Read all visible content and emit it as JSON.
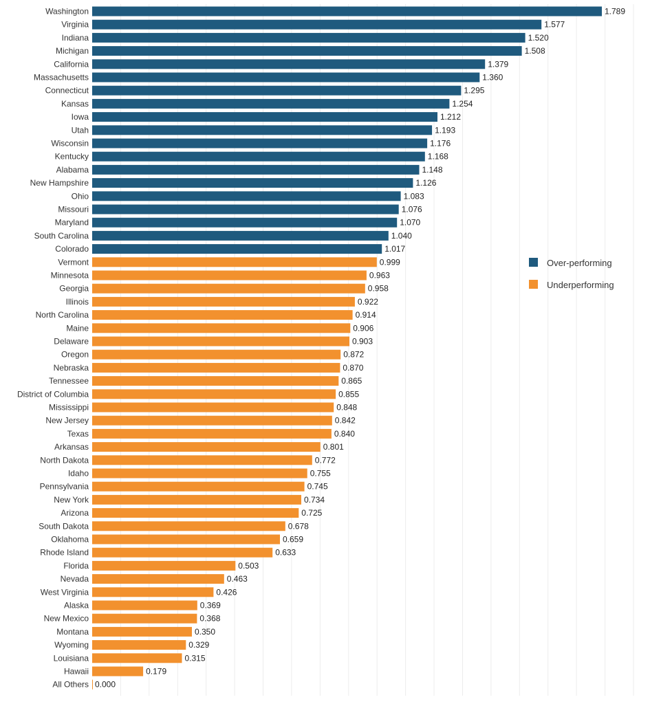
{
  "chart_data": {
    "type": "bar",
    "orientation": "horizontal",
    "title": "",
    "xlabel": "",
    "ylabel": "",
    "xlim": [
      0,
      1.9
    ],
    "grid": true,
    "legend_position": "right",
    "colors": {
      "over": "#1f5a7e",
      "under": "#f2912e"
    },
    "legend": [
      {
        "key": "over",
        "label": "Over-performing"
      },
      {
        "key": "under",
        "label": "Underperforming"
      }
    ],
    "bars": [
      {
        "category": "Washington",
        "value": 1.789,
        "label": "1.789",
        "group": "over"
      },
      {
        "category": "Virginia",
        "value": 1.577,
        "label": "1.577",
        "group": "over"
      },
      {
        "category": "Indiana",
        "value": 1.52,
        "label": "1.520",
        "group": "over"
      },
      {
        "category": "Michigan",
        "value": 1.508,
        "label": "1.508",
        "group": "over"
      },
      {
        "category": "California",
        "value": 1.379,
        "label": "1.379",
        "group": "over"
      },
      {
        "category": "Massachusetts",
        "value": 1.36,
        "label": "1.360",
        "group": "over"
      },
      {
        "category": "Connecticut",
        "value": 1.295,
        "label": "1.295",
        "group": "over"
      },
      {
        "category": "Kansas",
        "value": 1.254,
        "label": "1.254",
        "group": "over"
      },
      {
        "category": "Iowa",
        "value": 1.212,
        "label": "1.212",
        "group": "over"
      },
      {
        "category": "Utah",
        "value": 1.193,
        "label": "1.193",
        "group": "over"
      },
      {
        "category": "Wisconsin",
        "value": 1.176,
        "label": "1.176",
        "group": "over"
      },
      {
        "category": "Kentucky",
        "value": 1.168,
        "label": "1.168",
        "group": "over"
      },
      {
        "category": "Alabama",
        "value": 1.148,
        "label": "1.148",
        "group": "over"
      },
      {
        "category": "New Hampshire",
        "value": 1.126,
        "label": "1.126",
        "group": "over"
      },
      {
        "category": "Ohio",
        "value": 1.083,
        "label": "1.083",
        "group": "over"
      },
      {
        "category": "Missouri",
        "value": 1.076,
        "label": "1.076",
        "group": "over"
      },
      {
        "category": "Maryland",
        "value": 1.07,
        "label": "1.070",
        "group": "over"
      },
      {
        "category": "South Carolina",
        "value": 1.04,
        "label": "1.040",
        "group": "over"
      },
      {
        "category": "Colorado",
        "value": 1.017,
        "label": "1.017",
        "group": "over"
      },
      {
        "category": "Vermont",
        "value": 0.999,
        "label": "0.999",
        "group": "under"
      },
      {
        "category": "Minnesota",
        "value": 0.963,
        "label": "0.963",
        "group": "under"
      },
      {
        "category": "Georgia",
        "value": 0.958,
        "label": "0.958",
        "group": "under"
      },
      {
        "category": "Illinois",
        "value": 0.922,
        "label": "0.922",
        "group": "under"
      },
      {
        "category": "North Carolina",
        "value": 0.914,
        "label": "0.914",
        "group": "under"
      },
      {
        "category": "Maine",
        "value": 0.906,
        "label": "0.906",
        "group": "under"
      },
      {
        "category": "Delaware",
        "value": 0.903,
        "label": "0.903",
        "group": "under"
      },
      {
        "category": "Oregon",
        "value": 0.872,
        "label": "0.872",
        "group": "under"
      },
      {
        "category": "Nebraska",
        "value": 0.87,
        "label": "0.870",
        "group": "under"
      },
      {
        "category": "Tennessee",
        "value": 0.865,
        "label": "0.865",
        "group": "under"
      },
      {
        "category": "District of Columbia",
        "value": 0.855,
        "label": "0.855",
        "group": "under"
      },
      {
        "category": "Mississippi",
        "value": 0.848,
        "label": "0.848",
        "group": "under"
      },
      {
        "category": "New Jersey",
        "value": 0.842,
        "label": "0.842",
        "group": "under"
      },
      {
        "category": "Texas",
        "value": 0.84,
        "label": "0.840",
        "group": "under"
      },
      {
        "category": "Arkansas",
        "value": 0.801,
        "label": "0.801",
        "group": "under"
      },
      {
        "category": "North Dakota",
        "value": 0.772,
        "label": "0.772",
        "group": "under"
      },
      {
        "category": "Idaho",
        "value": 0.755,
        "label": "0.755",
        "group": "under"
      },
      {
        "category": "Pennsylvania",
        "value": 0.745,
        "label": "0.745",
        "group": "under"
      },
      {
        "category": "New York",
        "value": 0.734,
        "label": "0.734",
        "group": "under"
      },
      {
        "category": "Arizona",
        "value": 0.725,
        "label": "0.725",
        "group": "under"
      },
      {
        "category": "South Dakota",
        "value": 0.678,
        "label": "0.678",
        "group": "under"
      },
      {
        "category": "Oklahoma",
        "value": 0.659,
        "label": "0.659",
        "group": "under"
      },
      {
        "category": "Rhode Island",
        "value": 0.633,
        "label": "0.633",
        "group": "under"
      },
      {
        "category": "Florida",
        "value": 0.503,
        "label": "0.503",
        "group": "under"
      },
      {
        "category": "Nevada",
        "value": 0.463,
        "label": "0.463",
        "group": "under"
      },
      {
        "category": "West Virginia",
        "value": 0.426,
        "label": "0.426",
        "group": "under"
      },
      {
        "category": "Alaska",
        "value": 0.369,
        "label": "0.369",
        "group": "under"
      },
      {
        "category": "New Mexico",
        "value": 0.368,
        "label": "0.368",
        "group": "under"
      },
      {
        "category": "Montana",
        "value": 0.35,
        "label": "0.350",
        "group": "under"
      },
      {
        "category": "Wyoming",
        "value": 0.329,
        "label": "0.329",
        "group": "under"
      },
      {
        "category": "Louisiana",
        "value": 0.315,
        "label": "0.315",
        "group": "under"
      },
      {
        "category": "Hawaii",
        "value": 0.179,
        "label": "0.179",
        "group": "under"
      },
      {
        "category": "All Others",
        "value": 0.0,
        "label": "0.000",
        "group": "under"
      }
    ]
  }
}
